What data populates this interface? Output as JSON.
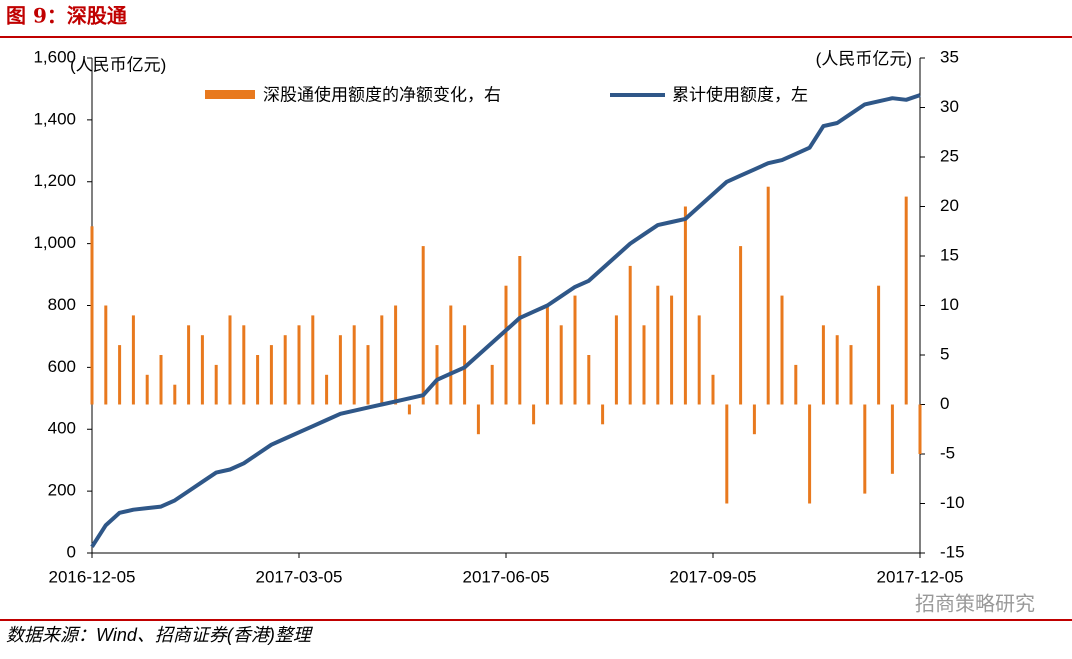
{
  "chart_data": {
    "type": "combo",
    "title": "图 9：深股通",
    "y_label": "(人民币亿元)",
    "y2_label": "(人民币亿元)",
    "source": "数据来源：Wind、招商证券(香港)整理",
    "watermark": "招商策略研究",
    "categories": [
      "2016-12-05",
      null,
      null,
      null,
      null,
      null,
      null,
      null,
      null,
      null,
      null,
      null,
      null,
      null,
      null,
      "2017-03-05",
      null,
      null,
      null,
      null,
      null,
      null,
      null,
      null,
      null,
      null,
      null,
      null,
      null,
      null,
      "2017-06-05",
      null,
      null,
      null,
      null,
      null,
      null,
      null,
      null,
      null,
      null,
      null,
      null,
      null,
      null,
      "2017-09-05",
      null,
      null,
      null,
      null,
      null,
      null,
      null,
      null,
      null,
      null,
      null,
      null,
      null,
      null,
      "2017-12-05"
    ],
    "series": [
      {
        "name": "深股通使用额度的净额变化，右",
        "type": "bar",
        "axis": "y2",
        "color": "#e8791e",
        "values": [
          18,
          10,
          6,
          9,
          3,
          5,
          2,
          8,
          7,
          4,
          9,
          8,
          5,
          6,
          7,
          8,
          9,
          3,
          7,
          8,
          6,
          9,
          10,
          -1,
          16,
          6,
          10,
          8,
          -3,
          4,
          12,
          15,
          -2,
          10,
          8,
          11,
          5,
          -2,
          9,
          14,
          8,
          12,
          11,
          20,
          9,
          3,
          -10,
          16,
          -3,
          22,
          11,
          4,
          -10,
          8,
          7,
          6,
          -9,
          12,
          -7,
          21,
          -5
        ]
      },
      {
        "name": "累计使用额度，左",
        "type": "line",
        "color": "#2f5788",
        "values": [
          20,
          90,
          130,
          140,
          145,
          150,
          170,
          200,
          230,
          260,
          270,
          290,
          320,
          350,
          370,
          390,
          410,
          430,
          450,
          460,
          470,
          480,
          490,
          500,
          510,
          560,
          580,
          600,
          640,
          680,
          720,
          760,
          780,
          800,
          830,
          860,
          880,
          920,
          960,
          1000,
          1030,
          1060,
          1070,
          1080,
          1120,
          1160,
          1200,
          1220,
          1240,
          1260,
          1270,
          1290,
          1310,
          1380,
          1390,
          1420,
          1450,
          1460,
          1470,
          1465,
          1480
        ]
      }
    ],
    "ylim": [
      0,
      1600
    ],
    "yticks": [
      0,
      200,
      400,
      600,
      800,
      {
        "value": 1000,
        "label": "1,000"
      },
      {
        "value": 1200,
        "label": "1,200"
      },
      {
        "value": 1400,
        "label": "1,400"
      },
      {
        "value": 1600,
        "label": "1,600"
      }
    ],
    "y2lim": [
      -15,
      35
    ],
    "y2ticks": [
      -15,
      -10,
      -5,
      0,
      5,
      10,
      15,
      20,
      25,
      30,
      35
    ]
  }
}
